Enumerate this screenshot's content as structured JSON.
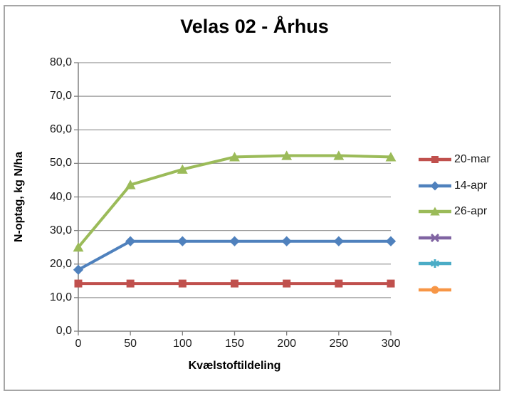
{
  "frame": {
    "border_color": "#A6A6A6"
  },
  "chart_data": {
    "type": "line",
    "title": "Velas 02 - Århus",
    "xlabel": "Kvælstoftildeling",
    "ylabel": "N-optag, kg N/ha",
    "x": [
      0,
      50,
      100,
      150,
      200,
      250,
      300
    ],
    "xlim": [
      0,
      300
    ],
    "ylim": [
      0,
      80
    ],
    "xtick_labels": [
      "0",
      "50",
      "100",
      "150",
      "200",
      "250",
      "300"
    ],
    "ytick_labels": [
      "0,0",
      "10,0",
      "20,0",
      "30,0",
      "40,0",
      "50,0",
      "60,0",
      "70,0",
      "80,0"
    ],
    "grid": true,
    "grid_color": "#9A9A9A",
    "axis_color": "#808080",
    "legend_position": "right",
    "series": [
      {
        "name": "20-mar",
        "color": "#C0504D",
        "marker": "square",
        "values": [
          14.2,
          14.2,
          14.2,
          14.2,
          14.2,
          14.2,
          14.2
        ]
      },
      {
        "name": "14-apr",
        "color": "#4F81BD",
        "marker": "diamond",
        "values": [
          18.3,
          26.8,
          26.8,
          26.8,
          26.8,
          26.8,
          26.8
        ]
      },
      {
        "name": "26-apr",
        "color": "#9BBB59",
        "marker": "triangle",
        "values": [
          25.0,
          43.6,
          48.2,
          51.9,
          52.3,
          52.3,
          51.9
        ]
      },
      {
        "name": "",
        "color": "#8064A2",
        "marker": "x",
        "values": []
      },
      {
        "name": "",
        "color": "#4BACC6",
        "marker": "asterisk",
        "values": []
      },
      {
        "name": "",
        "color": "#F79646",
        "marker": "circle",
        "values": []
      }
    ]
  }
}
